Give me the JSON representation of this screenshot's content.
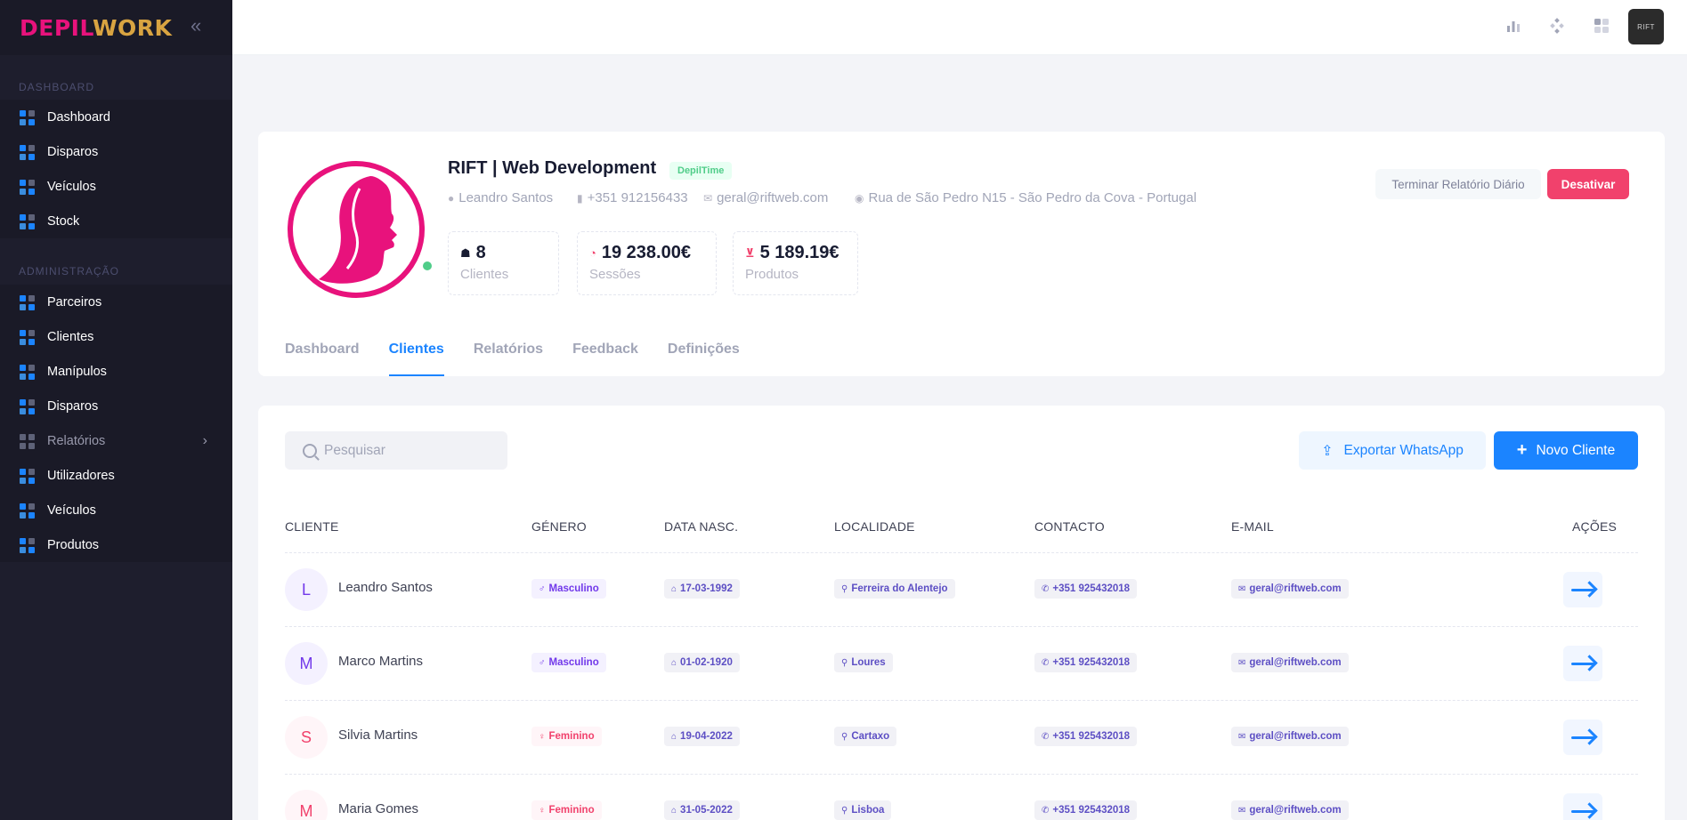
{
  "brand": {
    "part1": "DEPIL",
    "part2": "WORK"
  },
  "sidebar": {
    "section_dashboard": "DASHBOARD",
    "dashboard_items": [
      {
        "label": "Dashboard"
      },
      {
        "label": "Disparos"
      },
      {
        "label": "Veículos"
      },
      {
        "label": "Stock"
      }
    ],
    "section_admin": "ADMINISTRAÇÃO",
    "admin_items": [
      {
        "label": "Parceiros"
      },
      {
        "label": "Clientes"
      },
      {
        "label": "Manípulos"
      },
      {
        "label": "Disparos"
      },
      {
        "label": "Relatórios"
      },
      {
        "label": "Utilizadores"
      },
      {
        "label": "Veículos"
      },
      {
        "label": "Produtos"
      }
    ]
  },
  "topbar": {
    "user_avatar_text": "RIFT"
  },
  "profile": {
    "name": "RIFT | Web Development",
    "badge": "DepilTime",
    "contact_name": "Leandro Santos",
    "phone": "+351 912156433",
    "email": "geral@riftweb.com",
    "address": "Rua de São Pedro N15 - São Pedro da Cova - Portugal",
    "stats": [
      {
        "value": "8",
        "label": "Clientes"
      },
      {
        "value": "19 238.00€",
        "label": "Sessões"
      },
      {
        "value": "5 189.19€",
        "label": "Produtos"
      }
    ],
    "btn_report": "Terminar Relatório Diário",
    "btn_disable": "Desativar",
    "online": true
  },
  "tabs": [
    {
      "label": "Dashboard"
    },
    {
      "label": "Clientes"
    },
    {
      "label": "Relatórios"
    },
    {
      "label": "Feedback"
    },
    {
      "label": "Definições"
    }
  ],
  "active_tab": "Clientes",
  "clients": {
    "search_placeholder": "Pesquisar",
    "export_label": "Exportar WhatsApp",
    "new_label": "Novo Cliente",
    "headers": {
      "cliente": "CLIENTE",
      "genero": "GÉNERO",
      "data": "DATA NASC.",
      "localidade": "LOCALIDADE",
      "contacto": "CONTACTO",
      "email": "E-MAIL",
      "acoes": "AÇÕES"
    },
    "rows": [
      {
        "initial": "L",
        "name": "Leandro Santos",
        "gender": "Masculino",
        "birth": "17-03-1992",
        "locality": "Ferreira do Alentejo",
        "contact": "+351 925432018",
        "email": "geral@riftweb.com"
      },
      {
        "initial": "M",
        "name": "Marco Martins",
        "gender": "Masculino",
        "birth": "01-02-1920",
        "locality": "Loures",
        "contact": "+351 925432018",
        "email": "geral@riftweb.com"
      },
      {
        "initial": "S",
        "name": "Silvia Martins",
        "gender": "Feminino",
        "birth": "19-04-2022",
        "locality": "Cartaxo",
        "contact": "+351 925432018",
        "email": "geral@riftweb.com"
      },
      {
        "initial": "M",
        "name": "Maria Gomes",
        "gender": "Feminino",
        "birth": "31-05-2022",
        "locality": "Lisboa",
        "contact": "+351 925432018",
        "email": "geral@riftweb.com"
      }
    ]
  },
  "colors": {
    "accent": "#1b84ff",
    "brand_pink": "#e8127c",
    "brand_gold": "#d9a441",
    "danger": "#f1416c",
    "success": "#50cd89",
    "sidebar_bg": "#1e1e2d"
  }
}
